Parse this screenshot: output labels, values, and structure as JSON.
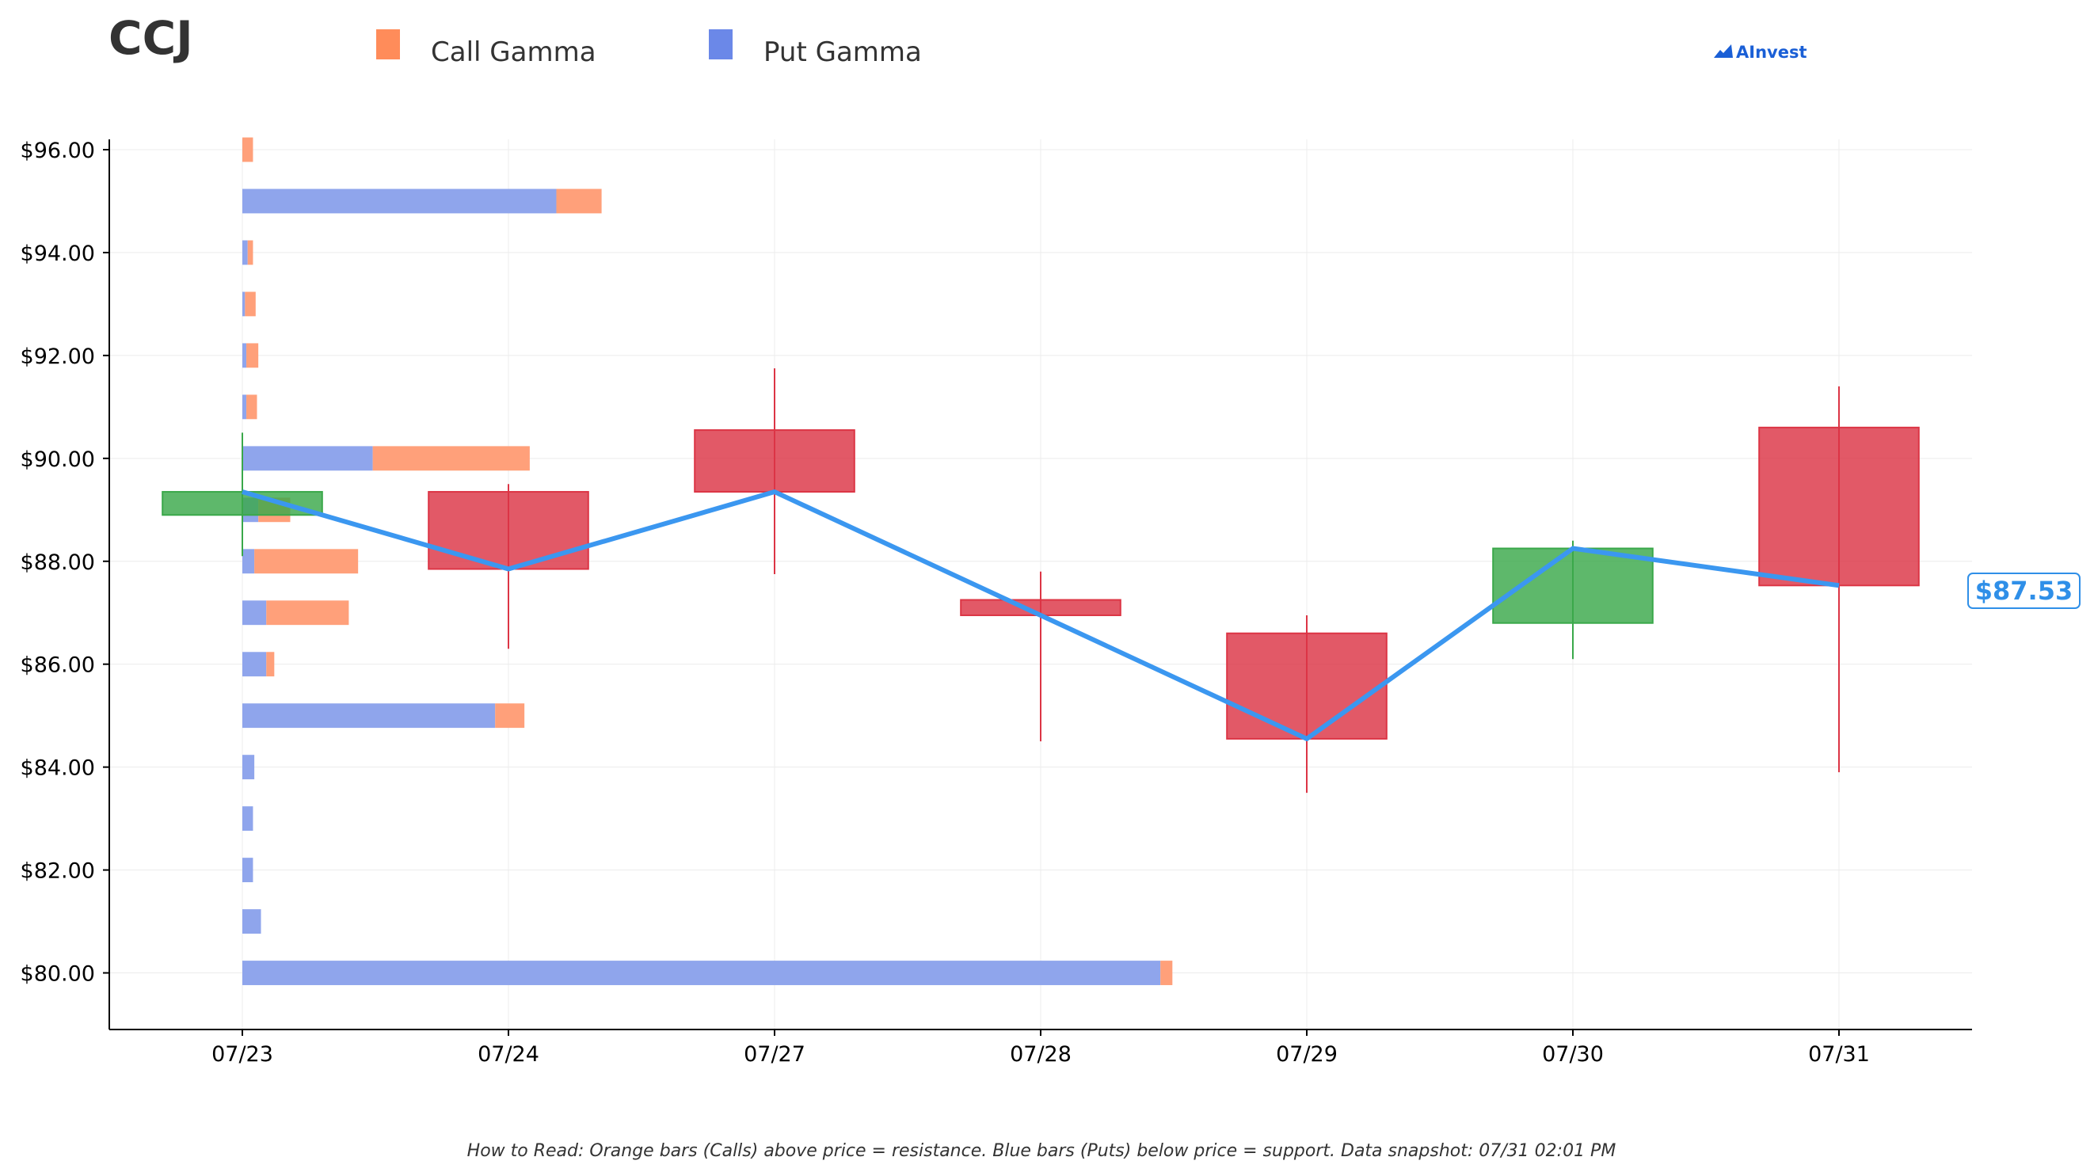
{
  "ticker": "CCJ",
  "brand": "AInvest",
  "legend": [
    {
      "label": "Call Gamma",
      "color": "#ff8c5a"
    },
    {
      "label": "Put Gamma",
      "color": "#6b88e8"
    }
  ],
  "colors": {
    "call_bar": "#ffa07a",
    "put_bar": "#8fa5ec",
    "up_candle": "#3aa84a",
    "down_candle": "#dc3545",
    "price_line": "#3b97f0"
  },
  "last_price_label": "$87.53",
  "footnote": "How to Read: Orange bars (Calls) above price = resistance. Blue bars (Puts) below price = support. Data snapshot: 07/31 02:01 PM",
  "chart_data": {
    "type": "candlestick",
    "x_categories": [
      "07/23",
      "07/24",
      "07/27",
      "07/28",
      "07/29",
      "07/30",
      "07/31"
    ],
    "y_tick_labels": [
      "$80.00",
      "$82.00",
      "$84.00",
      "$86.00",
      "$88.00",
      "$90.00",
      "$92.00",
      "$94.00",
      "$96.00"
    ],
    "y_ticks": [
      80,
      82,
      84,
      86,
      88,
      90,
      92,
      94,
      96
    ],
    "ylim": [
      78.9,
      96.2
    ],
    "xlim": [
      -0.5,
      6.5
    ],
    "grid": true,
    "candles": [
      {
        "date": "07/23",
        "open": 88.9,
        "high": 90.5,
        "low": 88.1,
        "close": 89.35
      },
      {
        "date": "07/24",
        "open": 89.35,
        "high": 89.5,
        "low": 86.3,
        "close": 87.85
      },
      {
        "date": "07/27",
        "open": 90.55,
        "high": 91.75,
        "low": 87.75,
        "close": 89.35
      },
      {
        "date": "07/28",
        "open": 87.25,
        "high": 87.8,
        "low": 84.5,
        "close": 86.95
      },
      {
        "date": "07/29",
        "open": 86.6,
        "high": 86.95,
        "low": 83.5,
        "close": 84.55
      },
      {
        "date": "07/30",
        "open": 86.8,
        "high": 88.4,
        "low": 86.1,
        "close": 88.25
      },
      {
        "date": "07/31",
        "open": 90.6,
        "high": 91.4,
        "low": 83.9,
        "close": 87.53
      }
    ],
    "close_line": [
      89.35,
      87.85,
      89.35,
      86.95,
      84.55,
      88.25,
      87.53
    ],
    "gamma_profile": {
      "strikes": [
        80,
        81,
        82,
        83,
        84,
        85,
        86,
        87,
        88,
        89,
        90,
        91,
        92,
        93,
        94,
        95,
        96
      ],
      "put_gamma": [
        3.45,
        0.07,
        0.04,
        0.04,
        0.045,
        0.95,
        0.09,
        0.09,
        0.045,
        0.06,
        0.49,
        0.015,
        0.015,
        0.01,
        0.02,
        1.18,
        0.0
      ],
      "call_gamma": [
        0.045,
        0.0,
        0.0,
        0.0,
        0.0,
        0.11,
        0.03,
        0.31,
        0.39,
        0.12,
        0.59,
        0.04,
        0.045,
        0.04,
        0.02,
        0.17,
        0.04
      ]
    }
  }
}
